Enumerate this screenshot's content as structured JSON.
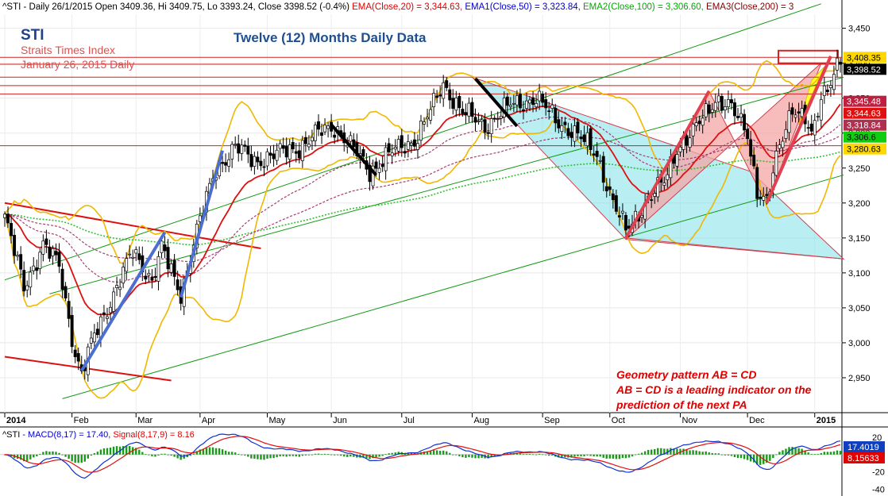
{
  "header": {
    "symbol": "^STI",
    "sep1": " - Daily 26/1/2015 Open 3409.36, Hi 3409.75, Lo 3393.24, Close 3398.52 (-0.4%) ",
    "ema20": "EMA(Close,20) = 3,344.63,",
    "ema50": " EMA1(Close,50) = 3,323.84,",
    "ema100": " EMA2(Close,100) = 3,306.60,",
    "ema200": " EMA3(Close,200) = 3"
  },
  "annotations": {
    "ticker": "STI",
    "index_name": "Straits Times Index",
    "date_line": "January 26, 2015 Daily",
    "title": "Twelve (12) Months Daily Data",
    "pattern_line1": "Geometry pattern AB = CD",
    "pattern_line2": "AB = CD is a leading indicator on the",
    "pattern_line3": "prediction of the next PA"
  },
  "price_badges": [
    {
      "label": "3,408.35",
      "bg": "#ffd700",
      "fg": "#000000",
      "v": 3408.35
    },
    {
      "label": "3,398.52",
      "bg": "#000000",
      "fg": "#ffffff",
      "v": 3398.52
    },
    {
      "label": "3,345.48",
      "bg": "#c02040",
      "fg": "#ffffff",
      "v": 3345.48
    },
    {
      "label": "3,344.63",
      "bg": "#e01010",
      "fg": "#ffffff",
      "v": 3344.63
    },
    {
      "label": "3,318.84",
      "bg": "#b03050",
      "fg": "#ffffff",
      "v": 3318.84
    },
    {
      "label": "3,306.6",
      "bg": "#11cc11",
      "fg": "#000000",
      "v": 3306.6
    },
    {
      "label": "3,280.63",
      "bg": "#ffd700",
      "fg": "#000000",
      "v": 3280.63
    }
  ],
  "macd": {
    "label_symbol": "^STI",
    "label_macd": " - MACD(8,17) = 17.40,",
    "label_signal": " Signal(8,17,9) = 8.16",
    "badge_macd": "17.4019",
    "badge_signal": "8.15633",
    "y_ticks": [
      "20",
      "0",
      "-20",
      "-40"
    ]
  },
  "chart_data": {
    "type": "candlestick",
    "title": "Twelve (12) Months Daily Data",
    "y_range": [
      2900,
      3470
    ],
    "y_ticks": [
      2950,
      3000,
      3050,
      3100,
      3150,
      3200,
      3250,
      3300,
      3350,
      3400,
      3450
    ],
    "y_tick_labels": [
      "2,950",
      "3,000",
      "3,050",
      "3,100",
      "3,150",
      "3,200",
      "3,250",
      "3,300",
      "3,350",
      "3,400",
      "3,450"
    ],
    "x_labels": [
      "2014",
      "Feb",
      "Mar",
      "Apr",
      "May",
      "Jun",
      "Jul",
      "Aug",
      "Sep",
      "Oct",
      "Nov",
      "Dec",
      "2015"
    ],
    "x_label_idx": [
      0,
      21,
      41,
      61,
      82,
      102,
      124,
      146,
      168,
      189,
      211,
      232,
      253
    ],
    "close_waypoints": [
      [
        0,
        3180
      ],
      [
        6,
        3080
      ],
      [
        12,
        3140
      ],
      [
        17,
        3110
      ],
      [
        22,
        2985
      ],
      [
        24,
        2955
      ],
      [
        28,
        3010
      ],
      [
        34,
        3070
      ],
      [
        40,
        3130
      ],
      [
        46,
        3090
      ],
      [
        49,
        3135
      ],
      [
        53,
        3090
      ],
      [
        55,
        3070
      ],
      [
        60,
        3160
      ],
      [
        66,
        3250
      ],
      [
        72,
        3280
      ],
      [
        78,
        3260
      ],
      [
        85,
        3270
      ],
      [
        92,
        3280
      ],
      [
        98,
        3300
      ],
      [
        103,
        3310
      ],
      [
        110,
        3270
      ],
      [
        114,
        3245
      ],
      [
        120,
        3270
      ],
      [
        128,
        3290
      ],
      [
        134,
        3340
      ],
      [
        137,
        3370
      ],
      [
        143,
        3330
      ],
      [
        150,
        3310
      ],
      [
        158,
        3340
      ],
      [
        166,
        3350
      ],
      [
        172,
        3320
      ],
      [
        178,
        3300
      ],
      [
        185,
        3270
      ],
      [
        190,
        3200
      ],
      [
        194,
        3160
      ],
      [
        200,
        3200
      ],
      [
        206,
        3230
      ],
      [
        210,
        3280
      ],
      [
        215,
        3300
      ],
      [
        222,
        3350
      ],
      [
        226,
        3340
      ],
      [
        232,
        3300
      ],
      [
        235,
        3220
      ],
      [
        238,
        3200
      ],
      [
        242,
        3280
      ],
      [
        246,
        3340
      ],
      [
        250,
        3320
      ],
      [
        252,
        3290
      ],
      [
        255,
        3350
      ],
      [
        260,
        3398.5
      ],
      [
        261,
        3398.5
      ]
    ],
    "horizontal_levels": [
      3408.35,
      3398.52,
      3380,
      3368,
      3356,
      3282
    ],
    "ema_periods": [
      20,
      50,
      100,
      200
    ],
    "ema_values_latest": [
      3344.63,
      3323.84,
      3306.6
    ],
    "macd_latest": 17.4,
    "signal_latest": 8.16
  }
}
